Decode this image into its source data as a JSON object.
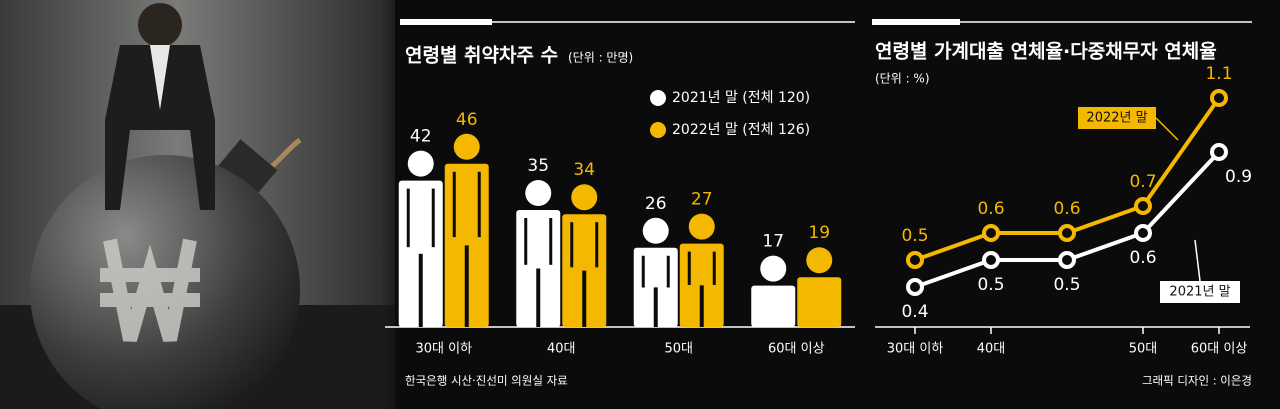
{
  "chart_data": [
    {
      "type": "bar",
      "title": "연령별 취약차주 수",
      "unit": "(단위 : 만명)",
      "categories": [
        "30대 이하",
        "40대",
        "50대",
        "60대 이상"
      ],
      "series": [
        {
          "name": "2021년 말 (전체 120)",
          "color": "#ffffff",
          "values": [
            42,
            35,
            26,
            17
          ]
        },
        {
          "name": "2022년 말 (전체 126)",
          "color": "#f5b800",
          "values": [
            46,
            34,
            27,
            19
          ]
        }
      ]
    },
    {
      "type": "line",
      "title": "연령별 가계대출 연체율·다중채무자 연체율",
      "unit": "(단위 : %)",
      "categories": [
        "30대 이하",
        "40대",
        null,
        "50대",
        "60대 이상"
      ],
      "series": [
        {
          "name": "2022년 말",
          "color": "#f5b800",
          "values": [
            0.5,
            0.6,
            0.6,
            0.7,
            1.1
          ]
        },
        {
          "name": "2021년 말",
          "color": "#ffffff",
          "values": [
            0.4,
            0.5,
            0.5,
            0.6,
            0.9
          ]
        }
      ]
    }
  ],
  "source": "한국은행 시산·진선미 의원실 자료",
  "credit": "그래픽 디자인 : 이은경"
}
